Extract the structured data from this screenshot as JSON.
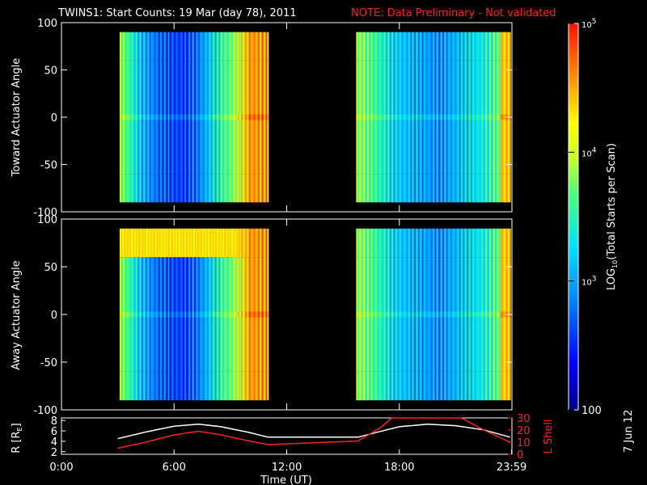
{
  "title": {
    "main": "TWINS1: Start Counts: 19 Mar (day  78), 2011",
    "note": "NOTE: Data Preliminary - Not validated"
  },
  "colors": {
    "background": "#000000",
    "axes": "#ffffff",
    "note": "#ff2020",
    "lshell_line": "#ff2020",
    "r_line": "#ffffff"
  },
  "chart_data": [
    {
      "type": "heatmap",
      "name": "toward",
      "ylabel": "Toward Actuator Angle",
      "ylim": [
        -100,
        100
      ],
      "yticks": [
        "100",
        "50",
        "0",
        "-50",
        "-100"
      ],
      "xlim_hours": [
        0,
        24
      ],
      "colorscale": "rainbow (log)",
      "data_windows_hours": [
        [
          3.1,
          11.0
        ],
        [
          15.7,
          23.9
        ]
      ],
      "angle_range": [
        -90,
        90
      ],
      "columns_log10": [
        [
          3.1,
          3.2
        ],
        [
          3.5,
          3.4
        ],
        [
          4.0,
          3.3
        ],
        [
          4.5,
          3.2
        ],
        [
          5.0,
          3.1
        ],
        [
          5.5,
          3.0
        ],
        [
          6.0,
          3.05
        ],
        [
          6.5,
          2.95
        ],
        [
          7.0,
          2.9
        ],
        [
          7.5,
          2.95
        ],
        [
          8.0,
          3.0
        ],
        [
          8.5,
          3.4
        ],
        [
          9.0,
          3.7
        ],
        [
          9.5,
          3.9
        ],
        [
          10.0,
          4.6
        ],
        [
          10.5,
          4.7
        ]
      ]
    },
    {
      "type": "heatmap",
      "name": "away",
      "ylabel": "Away Actuator Angle",
      "ylim": [
        -100,
        100
      ],
      "yticks": [
        "100",
        "50",
        "0",
        "-50",
        "-100"
      ],
      "xlim_hours": [
        0,
        24
      ],
      "colorscale": "rainbow (log)",
      "data_windows_hours": [
        [
          3.1,
          11.0
        ],
        [
          15.7,
          23.9
        ]
      ]
    },
    {
      "type": "colorbar",
      "label": "LOG10(Total Starts per Scan)",
      "ticks": [
        "100",
        "10^3",
        "10^4",
        "10^5"
      ],
      "range_log10": [
        2,
        5
      ]
    },
    {
      "type": "line",
      "name": "orbit",
      "xlabel": "Time (UT)",
      "xticks": [
        "0:00",
        "6:00",
        "12:00",
        "18:00",
        "23:59"
      ],
      "ylabel_left": "R [RE]",
      "ylabel_right": "L Shell",
      "yticks_left": [
        "2",
        "4",
        "6",
        "8"
      ],
      "yticks_right": [
        "0",
        "10",
        "20",
        "30"
      ],
      "ylim_left": [
        1.5,
        8.5
      ],
      "ylim_right": [
        0,
        30
      ],
      "series": [
        {
          "name": "R",
          "axis": "left",
          "x": [
            3.0,
            4.5,
            6.0,
            7.3,
            8.5,
            10.0,
            11.0,
            15.8,
            17.0,
            18.0,
            19.5,
            21.0,
            22.5,
            23.9
          ],
          "y": [
            4.5,
            5.8,
            6.9,
            7.3,
            6.8,
            5.7,
            4.8,
            4.8,
            5.9,
            6.8,
            7.3,
            7.0,
            6.2,
            4.8
          ]
        },
        {
          "name": "L Shell",
          "axis": "right",
          "x": [
            3.0,
            4.5,
            6.0,
            7.3,
            8.5,
            10.0,
            11.0,
            15.8,
            17.0,
            17.6,
            21.3,
            22.5,
            23.9
          ],
          "y": [
            5,
            10,
            16,
            19,
            16,
            11,
            8,
            11,
            22,
            30,
            30,
            20,
            10
          ]
        }
      ]
    }
  ],
  "stamp": "7 Jun 12"
}
